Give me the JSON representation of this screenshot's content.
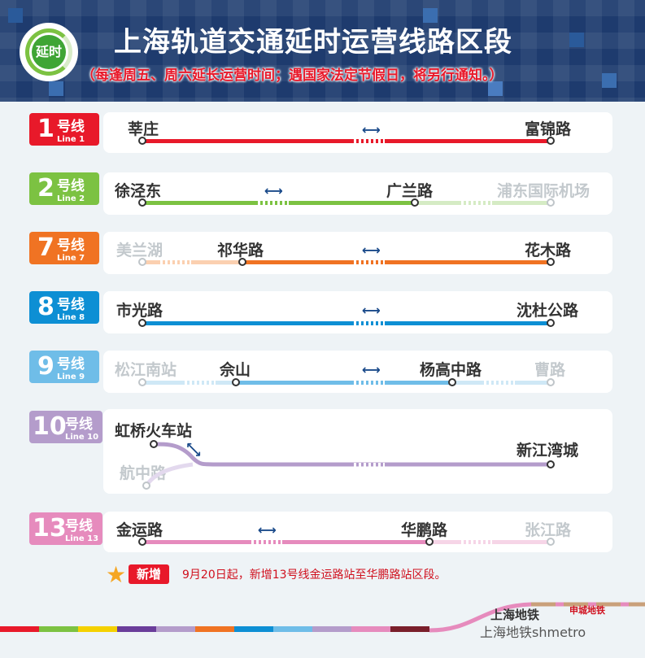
{
  "header": {
    "badge_text": "延时",
    "title": "上海轨道交通延时运营线路区段",
    "subtitle": "（每逢周五、周六延长运营时间；遇国家法定节假日，将另行通知。）"
  },
  "colors": {
    "line1": "#e8192a",
    "line2": "#7cc242",
    "line7": "#f07323",
    "line8": "#0d8fd4",
    "line9": "#6fbde8",
    "line10": "#b49ccb",
    "line13": "#e68bbd",
    "header_bg": "#1e3b6e",
    "notice_red": "#e8192a"
  },
  "lines": [
    {
      "num": "1",
      "hao": "号线",
      "en": "Line 1",
      "stations": [
        "莘庄",
        "富锦路"
      ]
    },
    {
      "num": "2",
      "hao": "号线",
      "en": "Line 2",
      "stations": [
        "徐泾东",
        "广兰路",
        "浦东国际机场"
      ]
    },
    {
      "num": "7",
      "hao": "号线",
      "en": "Line 7",
      "stations": [
        "美兰湖",
        "祁华路",
        "花木路"
      ]
    },
    {
      "num": "8",
      "hao": "号线",
      "en": "Line 8",
      "stations": [
        "市光路",
        "沈杜公路"
      ]
    },
    {
      "num": "9",
      "hao": "号线",
      "en": "Line 9",
      "stations": [
        "松江南站",
        "佘山",
        "杨高中路",
        "曹路"
      ]
    },
    {
      "num": "10",
      "hao": "号线",
      "en": "Line 10",
      "stations": [
        "虹桥火车站",
        "航中路",
        "新江湾城"
      ]
    },
    {
      "num": "13",
      "hao": "号线",
      "en": "Line 13",
      "stations": [
        "金运路",
        "华鹏路",
        "张江路"
      ]
    }
  ],
  "note": {
    "badge": "新增",
    "text": "9月20日起，新增13号线金运路站至华鹏路站区段。"
  },
  "footer": {
    "logo": "上海地铁",
    "sub": "申城地铁",
    "watermark": "上海地铁shmetro"
  }
}
